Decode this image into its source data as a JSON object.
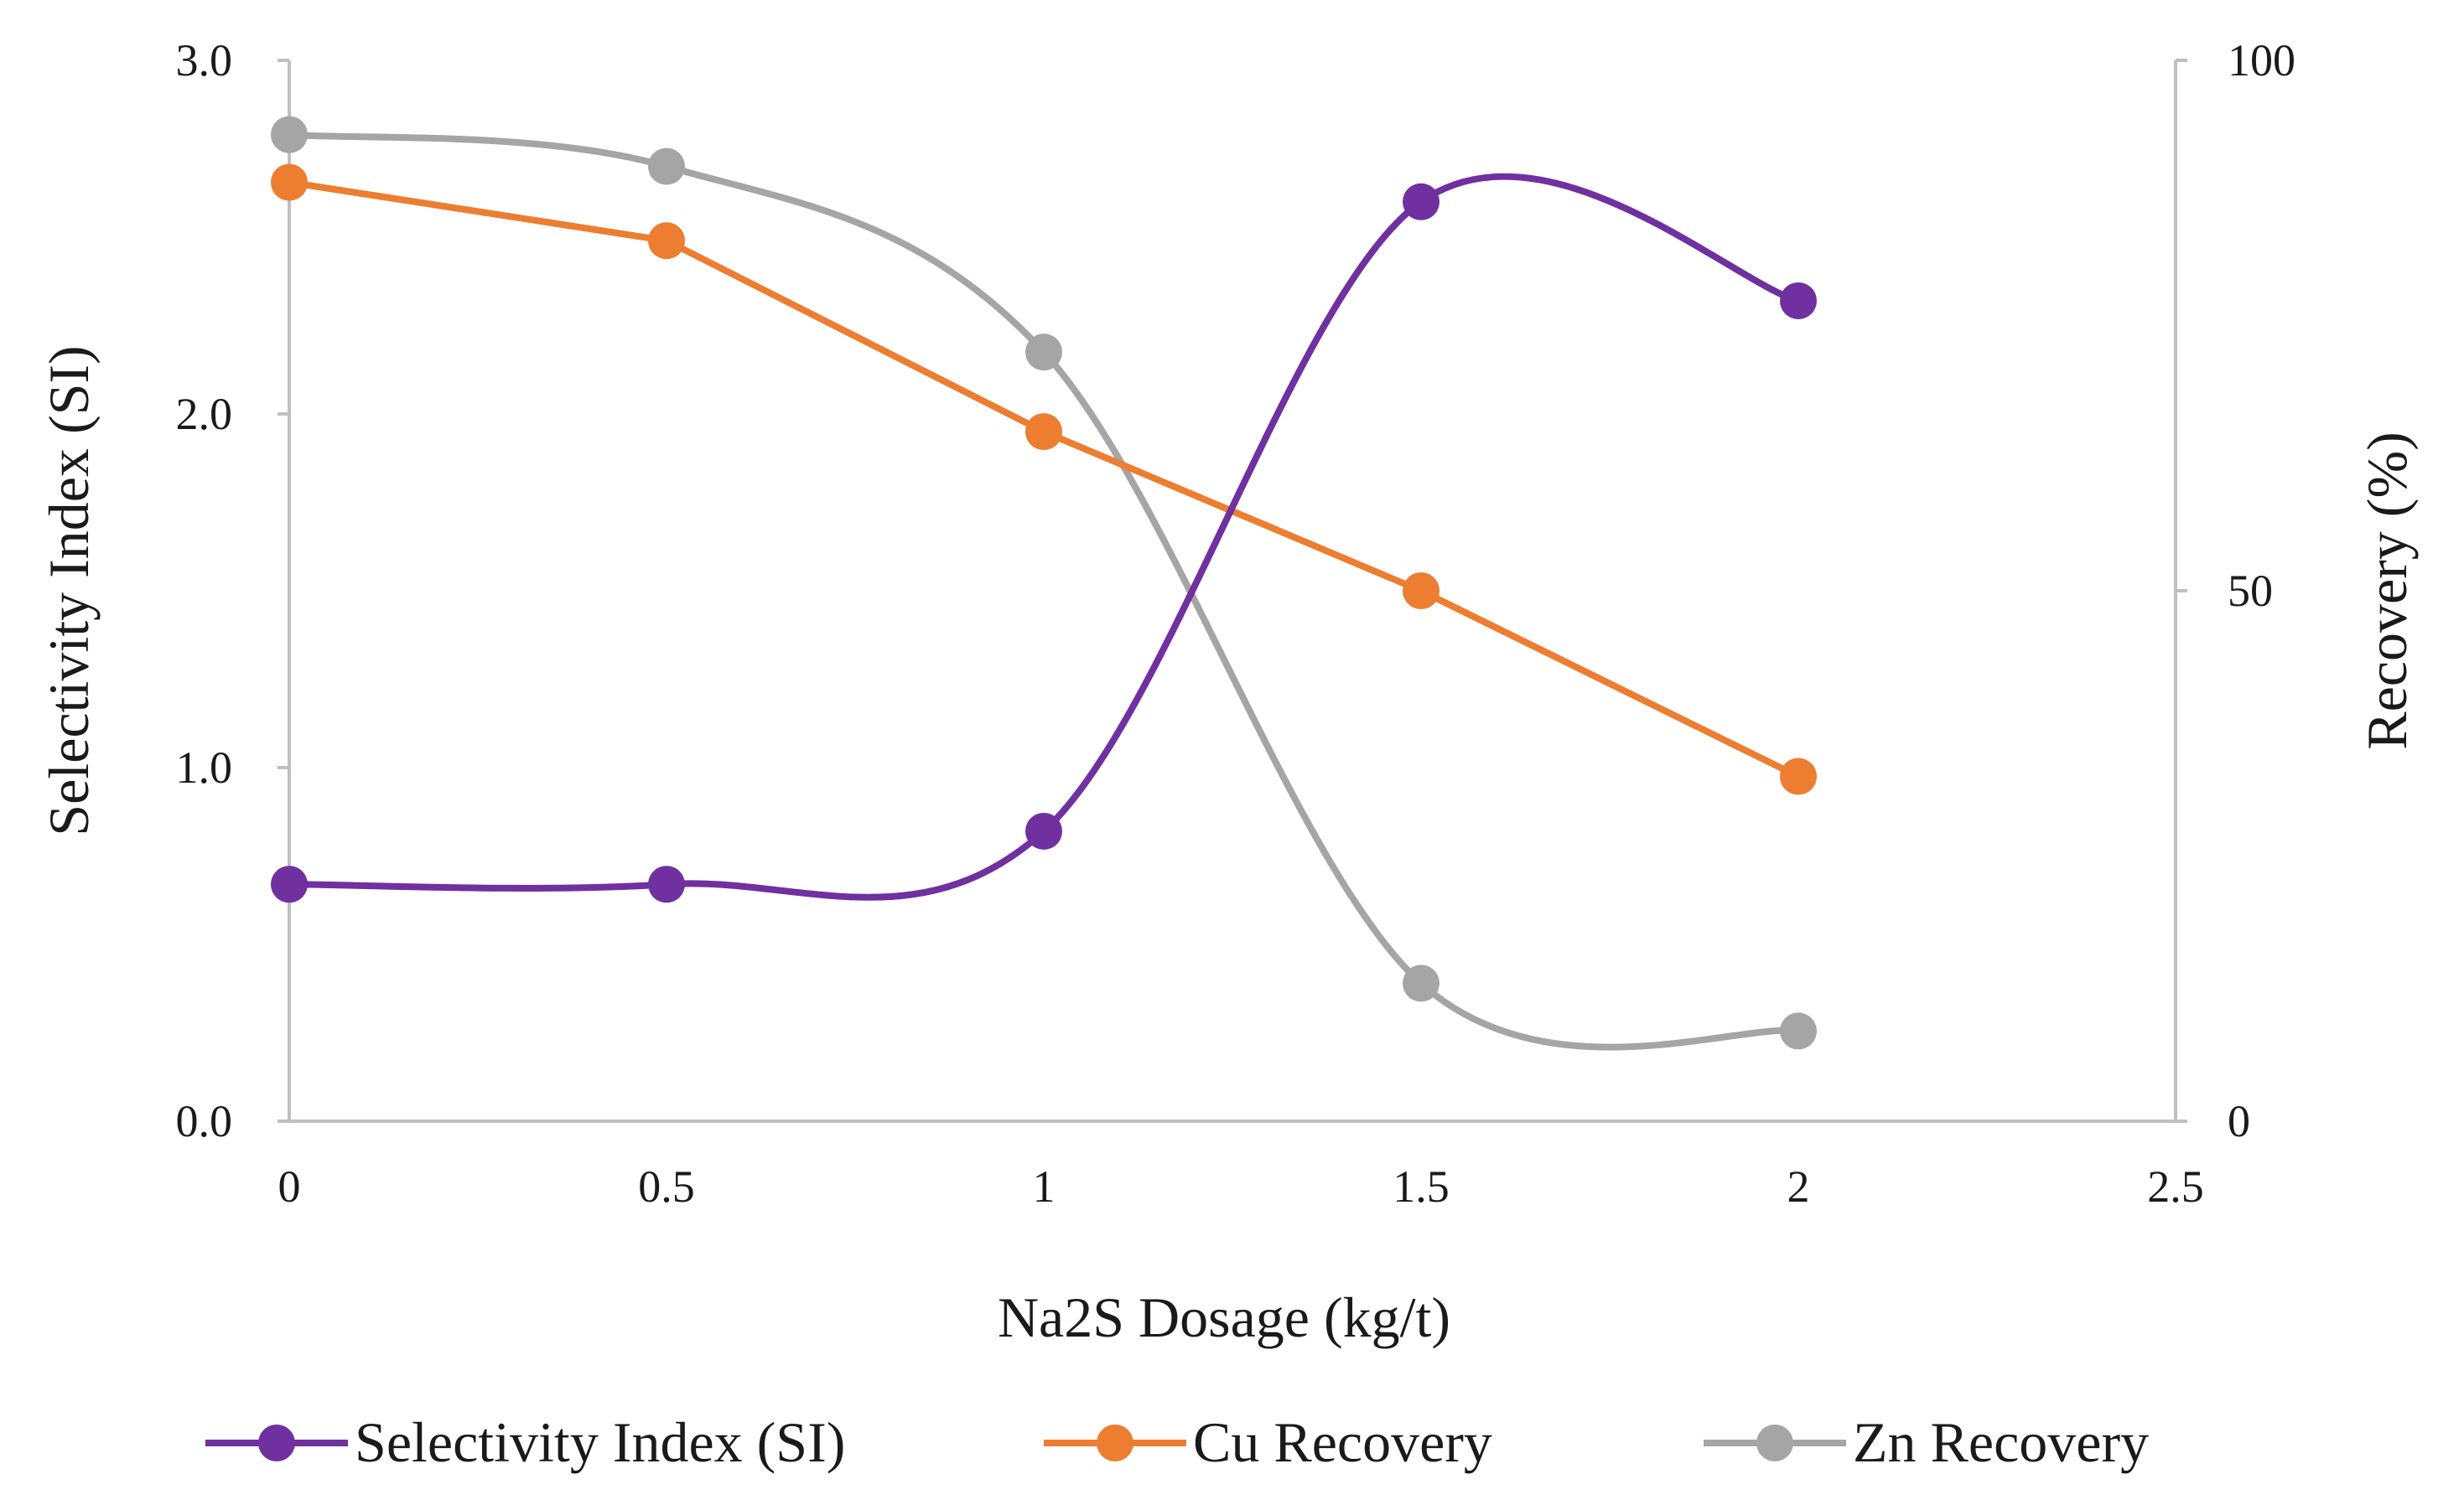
{
  "chart_data": {
    "type": "line",
    "title": "",
    "xlabel": "Na2S Dosage (kg/t)",
    "ylabel": "Selectivity Index (SI)",
    "y2label": "Recovery (%)",
    "xlim": [
      0,
      2.5
    ],
    "ylim": [
      0,
      3.0
    ],
    "y2lim": [
      0,
      100
    ],
    "x_ticks": [
      "0",
      "0.5",
      "1",
      "1.5",
      "2",
      "2.5"
    ],
    "x_tick_values": [
      0,
      0.5,
      1,
      1.5,
      2,
      2.5
    ],
    "y_ticks": [
      "0.0",
      "1.0",
      "2.0",
      "3.0"
    ],
    "y_tick_values": [
      0,
      1,
      2,
      3
    ],
    "y2_ticks": [
      "0",
      "50",
      "100"
    ],
    "y2_tick_values": [
      0,
      50,
      100
    ],
    "grid": false,
    "legend_position": "bottom",
    "x": [
      0,
      0.5,
      1,
      1.5,
      2
    ],
    "series": [
      {
        "name": "Selectivity Index (SI)",
        "axis": "left",
        "values": [
          0.67,
          0.67,
          0.82,
          2.6,
          2.32
        ],
        "color": "#7030a0",
        "smooth": true
      },
      {
        "name": "Cu Recovery",
        "axis": "right",
        "values": [
          88.5,
          83,
          65,
          50,
          32.5
        ],
        "color": "#ed7d31",
        "smooth": false
      },
      {
        "name": "Zn Recovery",
        "axis": "right",
        "values": [
          93,
          90,
          72.5,
          13,
          8.5
        ],
        "color": "#a5a5a5",
        "smooth": true
      }
    ]
  }
}
